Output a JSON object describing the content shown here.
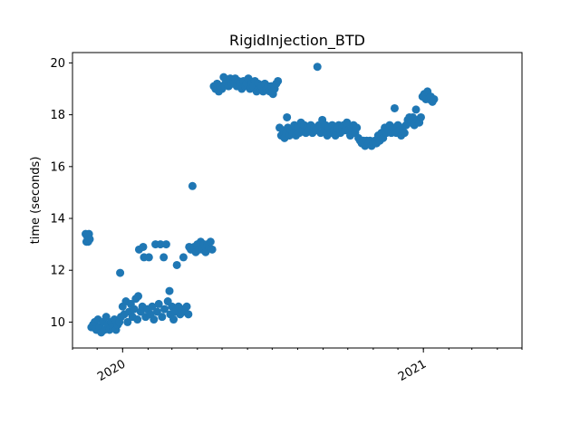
{
  "chart_data": {
    "type": "scatter",
    "title": "RigidInjection_BTD",
    "xlabel": "",
    "ylabel": "time (seconds)",
    "x_axis": "date",
    "xlim": [
      "2019-11-01",
      "2021-05-01"
    ],
    "ylim": [
      9.0,
      20.4
    ],
    "x_ticks": [
      {
        "value": "2020-01-01",
        "label": "2020"
      },
      {
        "value": "2021-01-01",
        "label": "2021"
      }
    ],
    "y_ticks": [
      10,
      12,
      14,
      16,
      18,
      20
    ],
    "grid": false,
    "marker_color": "#1f77b4",
    "points": [
      [
        "2019-11-17",
        13.4
      ],
      [
        "2019-11-18",
        13.1
      ],
      [
        "2019-11-19",
        13.3
      ],
      [
        "2019-11-20",
        13.1
      ],
      [
        "2019-11-21",
        13.4
      ],
      [
        "2019-11-22",
        13.2
      ],
      [
        "2019-11-24",
        9.8
      ],
      [
        "2019-11-26",
        9.9
      ],
      [
        "2019-11-28",
        10.0
      ],
      [
        "2019-11-30",
        9.7
      ],
      [
        "2019-12-02",
        10.1
      ],
      [
        "2019-12-04",
        9.8
      ],
      [
        "2019-12-06",
        9.6
      ],
      [
        "2019-12-08",
        10.0
      ],
      [
        "2019-12-10",
        9.7
      ],
      [
        "2019-12-12",
        10.2
      ],
      [
        "2019-12-14",
        9.9
      ],
      [
        "2019-12-16",
        9.7
      ],
      [
        "2019-12-18",
        10.0
      ],
      [
        "2019-12-20",
        9.8
      ],
      [
        "2019-12-22",
        10.1
      ],
      [
        "2019-12-24",
        9.7
      ],
      [
        "2019-12-26",
        9.9
      ],
      [
        "2019-12-28",
        10.0
      ],
      [
        "2019-12-29",
        11.9
      ],
      [
        "2019-12-30",
        10.2
      ],
      [
        "2020-01-01",
        10.6
      ],
      [
        "2020-01-03",
        10.3
      ],
      [
        "2020-01-05",
        10.8
      ],
      [
        "2020-01-07",
        10.0
      ],
      [
        "2020-01-09",
        10.4
      ],
      [
        "2020-01-11",
        10.7
      ],
      [
        "2020-01-13",
        10.2
      ],
      [
        "2020-01-15",
        10.5
      ],
      [
        "2020-01-17",
        10.9
      ],
      [
        "2020-01-19",
        10.1
      ],
      [
        "2020-01-20",
        11.0
      ],
      [
        "2020-01-21",
        12.8
      ],
      [
        "2020-01-23",
        10.4
      ],
      [
        "2020-01-25",
        10.6
      ],
      [
        "2020-01-26",
        12.9
      ],
      [
        "2020-01-27",
        12.5
      ],
      [
        "2020-01-29",
        10.2
      ],
      [
        "2020-01-31",
        10.5
      ],
      [
        "2020-02-02",
        12.5
      ],
      [
        "2020-02-04",
        10.3
      ],
      [
        "2020-02-06",
        10.6
      ],
      [
        "2020-02-08",
        10.1
      ],
      [
        "2020-02-10",
        13.0
      ],
      [
        "2020-02-12",
        10.4
      ],
      [
        "2020-02-14",
        10.7
      ],
      [
        "2020-02-16",
        13.0
      ],
      [
        "2020-02-18",
        10.2
      ],
      [
        "2020-02-20",
        12.5
      ],
      [
        "2020-02-21",
        10.5
      ],
      [
        "2020-02-23",
        13.0
      ],
      [
        "2020-02-25",
        10.8
      ],
      [
        "2020-02-27",
        11.2
      ],
      [
        "2020-02-28",
        10.3
      ],
      [
        "2020-03-01",
        10.6
      ],
      [
        "2020-03-03",
        10.1
      ],
      [
        "2020-03-05",
        10.4
      ],
      [
        "2020-03-07",
        12.2
      ],
      [
        "2020-03-09",
        10.6
      ],
      [
        "2020-03-11",
        10.3
      ],
      [
        "2020-03-13",
        10.5
      ],
      [
        "2020-03-15",
        12.5
      ],
      [
        "2020-03-17",
        10.4
      ],
      [
        "2020-03-19",
        10.6
      ],
      [
        "2020-03-21",
        10.3
      ],
      [
        "2020-03-22",
        12.9
      ],
      [
        "2020-03-24",
        12.8
      ],
      [
        "2020-03-26",
        15.25
      ],
      [
        "2020-03-28",
        12.9
      ],
      [
        "2020-03-30",
        12.7
      ],
      [
        "2020-04-01",
        13.0
      ],
      [
        "2020-04-03",
        12.8
      ],
      [
        "2020-04-05",
        13.1
      ],
      [
        "2020-04-07",
        12.8
      ],
      [
        "2020-04-09",
        13.0
      ],
      [
        "2020-04-11",
        12.7
      ],
      [
        "2020-04-13",
        13.0
      ],
      [
        "2020-04-15",
        12.9
      ],
      [
        "2020-04-17",
        13.1
      ],
      [
        "2020-04-19",
        12.8
      ],
      [
        "2020-04-21",
        19.1
      ],
      [
        "2020-04-23",
        19.0
      ],
      [
        "2020-04-25",
        19.2
      ],
      [
        "2020-04-27",
        18.9
      ],
      [
        "2020-04-29",
        19.1
      ],
      [
        "2020-05-01",
        19.0
      ],
      [
        "2020-05-03",
        19.45
      ],
      [
        "2020-05-05",
        19.2
      ],
      [
        "2020-05-07",
        19.3
      ],
      [
        "2020-05-09",
        19.1
      ],
      [
        "2020-05-11",
        19.4
      ],
      [
        "2020-05-13",
        19.2
      ],
      [
        "2020-05-15",
        19.3
      ],
      [
        "2020-05-17",
        19.4
      ],
      [
        "2020-05-19",
        19.1
      ],
      [
        "2020-05-21",
        19.3
      ],
      [
        "2020-05-23",
        19.2
      ],
      [
        "2020-05-25",
        19.0
      ],
      [
        "2020-05-27",
        19.3
      ],
      [
        "2020-05-29",
        19.1
      ],
      [
        "2020-05-31",
        19.2
      ],
      [
        "2020-06-02",
        19.4
      ],
      [
        "2020-06-04",
        19.0
      ],
      [
        "2020-06-06",
        19.2
      ],
      [
        "2020-06-08",
        19.1
      ],
      [
        "2020-06-10",
        19.3
      ],
      [
        "2020-06-12",
        18.9
      ],
      [
        "2020-06-14",
        19.2
      ],
      [
        "2020-06-16",
        19.0
      ],
      [
        "2020-06-18",
        19.1
      ],
      [
        "2020-06-20",
        18.9
      ],
      [
        "2020-06-22",
        19.2
      ],
      [
        "2020-06-24",
        19.0
      ],
      [
        "2020-06-26",
        19.1
      ],
      [
        "2020-06-28",
        18.9
      ],
      [
        "2020-06-30",
        19.1
      ],
      [
        "2020-07-02",
        18.8
      ],
      [
        "2020-07-04",
        19.0
      ],
      [
        "2020-07-06",
        19.2
      ],
      [
        "2020-07-08",
        19.3
      ],
      [
        "2020-07-10",
        17.5
      ],
      [
        "2020-07-12",
        17.2
      ],
      [
        "2020-07-14",
        17.4
      ],
      [
        "2020-07-16",
        17.1
      ],
      [
        "2020-07-18",
        17.3
      ],
      [
        "2020-07-19",
        17.9
      ],
      [
        "2020-07-20",
        17.5
      ],
      [
        "2020-07-22",
        17.2
      ],
      [
        "2020-07-24",
        17.4
      ],
      [
        "2020-07-26",
        17.3
      ],
      [
        "2020-07-28",
        17.6
      ],
      [
        "2020-07-30",
        17.2
      ],
      [
        "2020-08-01",
        17.5
      ],
      [
        "2020-08-03",
        17.3
      ],
      [
        "2020-08-05",
        17.7
      ],
      [
        "2020-08-07",
        17.4
      ],
      [
        "2020-08-09",
        17.6
      ],
      [
        "2020-08-11",
        17.3
      ],
      [
        "2020-08-13",
        17.5
      ],
      [
        "2020-08-15",
        17.4
      ],
      [
        "2020-08-17",
        17.6
      ],
      [
        "2020-08-19",
        17.3
      ],
      [
        "2020-08-21",
        17.5
      ],
      [
        "2020-08-23",
        17.4
      ],
      [
        "2020-08-25",
        19.85
      ],
      [
        "2020-08-27",
        17.6
      ],
      [
        "2020-08-29",
        17.3
      ],
      [
        "2020-08-31",
        17.8
      ],
      [
        "2020-09-02",
        17.4
      ],
      [
        "2020-09-04",
        17.6
      ],
      [
        "2020-09-06",
        17.2
      ],
      [
        "2020-09-08",
        17.5
      ],
      [
        "2020-09-10",
        17.3
      ],
      [
        "2020-09-12",
        17.6
      ],
      [
        "2020-09-14",
        17.4
      ],
      [
        "2020-09-16",
        17.2
      ],
      [
        "2020-09-18",
        17.5
      ],
      [
        "2020-09-20",
        17.6
      ],
      [
        "2020-09-22",
        17.3
      ],
      [
        "2020-09-24",
        17.5
      ],
      [
        "2020-09-26",
        17.6
      ],
      [
        "2020-09-28",
        17.4
      ],
      [
        "2020-09-30",
        17.7
      ],
      [
        "2020-10-02",
        17.4
      ],
      [
        "2020-10-04",
        17.2
      ],
      [
        "2020-10-06",
        17.5
      ],
      [
        "2020-10-08",
        17.6
      ],
      [
        "2020-10-10",
        17.3
      ],
      [
        "2020-10-12",
        17.5
      ],
      [
        "2020-10-14",
        17.1
      ],
      [
        "2020-10-16",
        17.0
      ],
      [
        "2020-10-18",
        16.9
      ],
      [
        "2020-10-20",
        17.0
      ],
      [
        "2020-10-22",
        16.8
      ],
      [
        "2020-10-24",
        17.0
      ],
      [
        "2020-10-26",
        16.9
      ],
      [
        "2020-10-28",
        17.0
      ],
      [
        "2020-10-30",
        16.8
      ],
      [
        "2020-11-01",
        16.9
      ],
      [
        "2020-11-03",
        17.0
      ],
      [
        "2020-11-05",
        16.9
      ],
      [
        "2020-11-07",
        17.2
      ],
      [
        "2020-11-09",
        17.0
      ],
      [
        "2020-11-11",
        17.3
      ],
      [
        "2020-11-13",
        17.1
      ],
      [
        "2020-11-15",
        17.5
      ],
      [
        "2020-11-17",
        17.3
      ],
      [
        "2020-11-19",
        17.4
      ],
      [
        "2020-11-21",
        17.6
      ],
      [
        "2020-11-23",
        17.3
      ],
      [
        "2020-11-25",
        17.5
      ],
      [
        "2020-11-27",
        18.25
      ],
      [
        "2020-11-29",
        17.3
      ],
      [
        "2020-12-01",
        17.6
      ],
      [
        "2020-12-03",
        17.4
      ],
      [
        "2020-12-05",
        17.2
      ],
      [
        "2020-12-07",
        17.5
      ],
      [
        "2020-12-09",
        17.3
      ],
      [
        "2020-12-11",
        17.6
      ],
      [
        "2020-12-13",
        17.8
      ],
      [
        "2020-12-15",
        17.9
      ],
      [
        "2020-12-17",
        17.7
      ],
      [
        "2020-12-19",
        17.9
      ],
      [
        "2020-12-21",
        17.6
      ],
      [
        "2020-12-23",
        18.2
      ],
      [
        "2020-12-25",
        17.8
      ],
      [
        "2020-12-27",
        17.7
      ],
      [
        "2020-12-29",
        17.9
      ],
      [
        "2020-12-31",
        18.7
      ],
      [
        "2021-01-02",
        18.8
      ],
      [
        "2021-01-04",
        18.6
      ],
      [
        "2021-01-06",
        18.9
      ],
      [
        "2021-01-08",
        18.6
      ],
      [
        "2021-01-10",
        18.7
      ],
      [
        "2021-01-12",
        18.5
      ],
      [
        "2021-01-14",
        18.6
      ]
    ]
  }
}
